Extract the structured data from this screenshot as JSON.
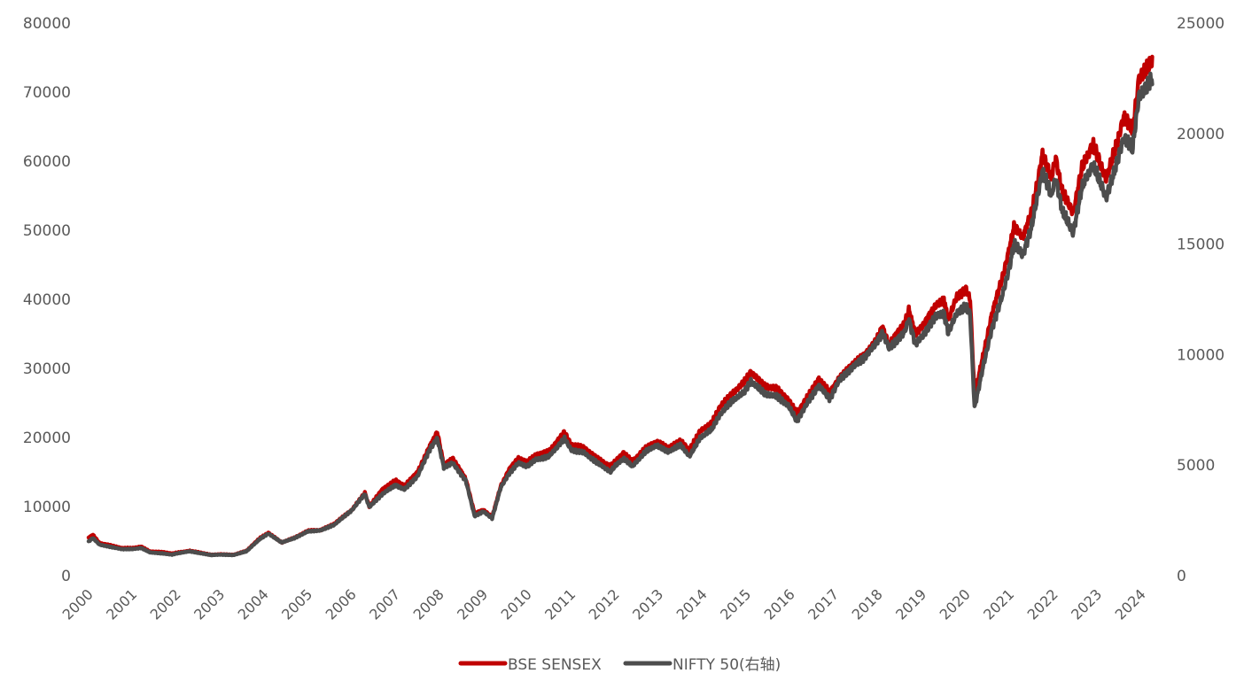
{
  "chart_data": {
    "type": "line",
    "title": "",
    "xlabel": "",
    "ylabel": "",
    "x_ticks": [
      "2000",
      "2001",
      "2002",
      "2003",
      "2004",
      "2005",
      "2006",
      "2007",
      "2008",
      "2009",
      "2010",
      "2011",
      "2012",
      "2013",
      "2014",
      "2015",
      "2016",
      "2017",
      "2018",
      "2019",
      "2020",
      "2021",
      "2022",
      "2023",
      "2024"
    ],
    "y_left": {
      "min": 0,
      "max": 80000,
      "ticks": [
        "0",
        "10000",
        "20000",
        "30000",
        "40000",
        "50000",
        "60000",
        "70000",
        "80000"
      ]
    },
    "y_right": {
      "min": 0,
      "max": 25000,
      "ticks": [
        "0",
        "5000",
        "10000",
        "15000",
        "20000",
        "25000"
      ]
    },
    "grid": false,
    "legend_position": "bottom",
    "series": [
      {
        "name": "BSE SENSEX",
        "axis": "left",
        "color": "#C00000",
        "points": [
          [
            2000.0,
            5500
          ],
          [
            2000.1,
            5900
          ],
          [
            2000.25,
            4700
          ],
          [
            2000.5,
            4400
          ],
          [
            2000.75,
            4000
          ],
          [
            2001.0,
            4000
          ],
          [
            2001.2,
            4200
          ],
          [
            2001.4,
            3500
          ],
          [
            2001.7,
            3400
          ],
          [
            2001.9,
            3200
          ],
          [
            2002.0,
            3300
          ],
          [
            2002.3,
            3600
          ],
          [
            2002.5,
            3400
          ],
          [
            2002.8,
            3000
          ],
          [
            2003.0,
            3100
          ],
          [
            2003.3,
            3000
          ],
          [
            2003.6,
            3600
          ],
          [
            2003.9,
            5400
          ],
          [
            2004.1,
            6200
          ],
          [
            2004.4,
            4800
          ],
          [
            2004.7,
            5500
          ],
          [
            2005.0,
            6500
          ],
          [
            2005.3,
            6600
          ],
          [
            2005.6,
            7500
          ],
          [
            2005.9,
            9000
          ],
          [
            2006.0,
            9500
          ],
          [
            2006.3,
            12000
          ],
          [
            2006.4,
            10000
          ],
          [
            2006.7,
            12500
          ],
          [
            2007.0,
            13800
          ],
          [
            2007.2,
            13000
          ],
          [
            2007.5,
            15000
          ],
          [
            2007.8,
            19000
          ],
          [
            2007.95,
            20800
          ],
          [
            2008.1,
            16000
          ],
          [
            2008.3,
            17000
          ],
          [
            2008.6,
            14000
          ],
          [
            2008.8,
            9000
          ],
          [
            2009.0,
            9500
          ],
          [
            2009.2,
            8500
          ],
          [
            2009.4,
            13000
          ],
          [
            2009.6,
            15500
          ],
          [
            2009.8,
            17000
          ],
          [
            2010.0,
            16500
          ],
          [
            2010.2,
            17500
          ],
          [
            2010.5,
            18000
          ],
          [
            2010.85,
            20800
          ],
          [
            2011.0,
            19000
          ],
          [
            2011.3,
            18500
          ],
          [
            2011.6,
            17000
          ],
          [
            2011.9,
            15800
          ],
          [
            2012.0,
            16500
          ],
          [
            2012.2,
            17800
          ],
          [
            2012.4,
            16500
          ],
          [
            2012.7,
            18500
          ],
          [
            2012.95,
            19400
          ],
          [
            2013.2,
            18500
          ],
          [
            2013.5,
            19500
          ],
          [
            2013.7,
            18200
          ],
          [
            2013.95,
            21000
          ],
          [
            2014.2,
            22000
          ],
          [
            2014.4,
            24500
          ],
          [
            2014.7,
            26500
          ],
          [
            2014.95,
            28000
          ],
          [
            2015.1,
            29500
          ],
          [
            2015.4,
            27500
          ],
          [
            2015.7,
            27000
          ],
          [
            2015.95,
            25500
          ],
          [
            2016.15,
            23500
          ],
          [
            2016.4,
            26000
          ],
          [
            2016.65,
            28500
          ],
          [
            2016.9,
            26500
          ],
          [
            2017.1,
            28500
          ],
          [
            2017.4,
            30500
          ],
          [
            2017.7,
            32000
          ],
          [
            2017.95,
            34000
          ],
          [
            2018.1,
            36000
          ],
          [
            2018.25,
            33500
          ],
          [
            2018.6,
            36500
          ],
          [
            2018.7,
            38500
          ],
          [
            2018.85,
            35000
          ],
          [
            2019.0,
            36000
          ],
          [
            2019.3,
            39000
          ],
          [
            2019.5,
            40000
          ],
          [
            2019.6,
            37000
          ],
          [
            2019.8,
            40500
          ],
          [
            2020.0,
            41500
          ],
          [
            2020.1,
            40000
          ],
          [
            2020.2,
            26000
          ],
          [
            2020.4,
            32000
          ],
          [
            2020.6,
            38000
          ],
          [
            2020.85,
            43500
          ],
          [
            2021.0,
            47500
          ],
          [
            2021.1,
            50500
          ],
          [
            2021.3,
            49000
          ],
          [
            2021.5,
            52500
          ],
          [
            2021.75,
            61000
          ],
          [
            2021.95,
            57500
          ],
          [
            2022.05,
            60500
          ],
          [
            2022.2,
            55500
          ],
          [
            2022.45,
            52500
          ],
          [
            2022.65,
            59000
          ],
          [
            2022.9,
            62500
          ],
          [
            2023.1,
            59000
          ],
          [
            2023.2,
            57500
          ],
          [
            2023.45,
            62500
          ],
          [
            2023.6,
            66500
          ],
          [
            2023.8,
            64500
          ],
          [
            2023.95,
            72000
          ],
          [
            2024.1,
            73000
          ],
          [
            2024.25,
            74500
          ]
        ]
      },
      {
        "name": "NIFTY 50(右轴)",
        "axis": "right",
        "color": "#4D4D4D",
        "points": [
          [
            2000.0,
            1550
          ],
          [
            2000.1,
            1700
          ],
          [
            2000.25,
            1400
          ],
          [
            2000.5,
            1300
          ],
          [
            2000.75,
            1200
          ],
          [
            2001.0,
            1200
          ],
          [
            2001.2,
            1250
          ],
          [
            2001.4,
            1050
          ],
          [
            2001.7,
            1000
          ],
          [
            2001.9,
            950
          ],
          [
            2002.0,
            1000
          ],
          [
            2002.3,
            1100
          ],
          [
            2002.5,
            1030
          ],
          [
            2002.8,
            930
          ],
          [
            2003.0,
            950
          ],
          [
            2003.3,
            930
          ],
          [
            2003.6,
            1100
          ],
          [
            2003.9,
            1650
          ],
          [
            2004.1,
            1900
          ],
          [
            2004.4,
            1500
          ],
          [
            2004.7,
            1700
          ],
          [
            2005.0,
            2000
          ],
          [
            2005.3,
            2050
          ],
          [
            2005.6,
            2300
          ],
          [
            2005.9,
            2800
          ],
          [
            2006.0,
            2950
          ],
          [
            2006.3,
            3700
          ],
          [
            2006.4,
            3100
          ],
          [
            2006.7,
            3700
          ],
          [
            2007.0,
            4100
          ],
          [
            2007.2,
            3900
          ],
          [
            2007.5,
            4500
          ],
          [
            2007.8,
            5800
          ],
          [
            2007.95,
            6200
          ],
          [
            2008.1,
            4900
          ],
          [
            2008.3,
            5100
          ],
          [
            2008.6,
            4300
          ],
          [
            2008.8,
            2700
          ],
          [
            2009.0,
            2900
          ],
          [
            2009.2,
            2600
          ],
          [
            2009.4,
            4000
          ],
          [
            2009.6,
            4650
          ],
          [
            2009.8,
            5100
          ],
          [
            2010.0,
            4950
          ],
          [
            2010.2,
            5250
          ],
          [
            2010.5,
            5400
          ],
          [
            2010.85,
            6200
          ],
          [
            2011.0,
            5700
          ],
          [
            2011.3,
            5550
          ],
          [
            2011.6,
            5100
          ],
          [
            2011.9,
            4700
          ],
          [
            2012.0,
            4950
          ],
          [
            2012.2,
            5300
          ],
          [
            2012.4,
            4950
          ],
          [
            2012.7,
            5600
          ],
          [
            2012.95,
            5900
          ],
          [
            2013.2,
            5600
          ],
          [
            2013.5,
            5900
          ],
          [
            2013.7,
            5400
          ],
          [
            2013.95,
            6250
          ],
          [
            2014.2,
            6600
          ],
          [
            2014.4,
            7300
          ],
          [
            2014.7,
            7950
          ],
          [
            2014.95,
            8300
          ],
          [
            2015.1,
            8800
          ],
          [
            2015.4,
            8250
          ],
          [
            2015.7,
            8100
          ],
          [
            2015.95,
            7700
          ],
          [
            2016.15,
            7000
          ],
          [
            2016.4,
            7850
          ],
          [
            2016.65,
            8600
          ],
          [
            2016.9,
            8000
          ],
          [
            2017.1,
            8800
          ],
          [
            2017.4,
            9400
          ],
          [
            2017.7,
            9900
          ],
          [
            2017.95,
            10500
          ],
          [
            2018.1,
            11000
          ],
          [
            2018.25,
            10300
          ],
          [
            2018.6,
            11000
          ],
          [
            2018.7,
            11600
          ],
          [
            2018.85,
            10500
          ],
          [
            2019.0,
            10800
          ],
          [
            2019.3,
            11700
          ],
          [
            2019.5,
            11900
          ],
          [
            2019.6,
            11000
          ],
          [
            2019.8,
            11900
          ],
          [
            2020.0,
            12200
          ],
          [
            2020.1,
            11800
          ],
          [
            2020.2,
            7600
          ],
          [
            2020.4,
            9500
          ],
          [
            2020.6,
            11200
          ],
          [
            2020.85,
            12800
          ],
          [
            2021.0,
            14000
          ],
          [
            2021.1,
            15000
          ],
          [
            2021.3,
            14500
          ],
          [
            2021.5,
            15800
          ],
          [
            2021.75,
            18300
          ],
          [
            2021.95,
            17200
          ],
          [
            2022.05,
            18000
          ],
          [
            2022.2,
            16500
          ],
          [
            2022.45,
            15500
          ],
          [
            2022.65,
            17600
          ],
          [
            2022.9,
            18600
          ],
          [
            2023.1,
            17600
          ],
          [
            2023.2,
            17100
          ],
          [
            2023.45,
            18700
          ],
          [
            2023.6,
            19800
          ],
          [
            2023.8,
            19300
          ],
          [
            2023.95,
            21700
          ],
          [
            2024.1,
            22000
          ],
          [
            2024.25,
            22500
          ]
        ]
      }
    ]
  }
}
